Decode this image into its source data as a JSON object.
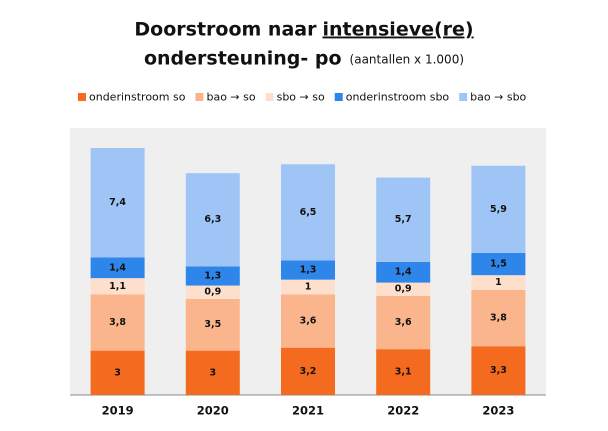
{
  "chart_data": {
    "type": "stacked_bar",
    "title": [
      "Doorstroom naar",
      "intensieve(re)",
      "ondersteuning- po"
    ],
    "subtitle": "(aantallen x 1.000)",
    "categories": [
      "2019",
      "2020",
      "2021",
      "2022",
      "2023"
    ],
    "series": [
      {
        "name": "onderinstroom so",
        "color": "#f46b1f",
        "values": [
          3,
          3,
          3.2,
          3.1,
          3.3
        ],
        "value_labels": [
          "3",
          "3",
          "3,2",
          "3,1",
          "3,3"
        ]
      },
      {
        "name": "bao → so",
        "color": "#fbb58c",
        "values": [
          3.8,
          3.5,
          3.6,
          3.6,
          3.8
        ],
        "value_labels": [
          "3,8",
          "3,5",
          "3,6",
          "3,6",
          "3,8"
        ]
      },
      {
        "name": "sbo → so",
        "color": "#fddfcb",
        "values": [
          1.1,
          0.9,
          1,
          0.9,
          1
        ],
        "value_labels": [
          "1,1",
          "0,9",
          "1",
          "0,9",
          "1"
        ]
      },
      {
        "name": "onderinstroom sbo",
        "color": "#2f86ea",
        "values": [
          1.4,
          1.3,
          1.3,
          1.4,
          1.5
        ],
        "value_labels": [
          "1,4",
          "1,3",
          "1,3",
          "1,4",
          "1,5"
        ]
      },
      {
        "name": "bao → sbo",
        "color": "#9ec5f6",
        "values": [
          7.4,
          6.3,
          6.5,
          5.7,
          5.9
        ],
        "value_labels": [
          "7,4",
          "6,3",
          "6,5",
          "5,7",
          "5,9"
        ]
      }
    ]
  }
}
